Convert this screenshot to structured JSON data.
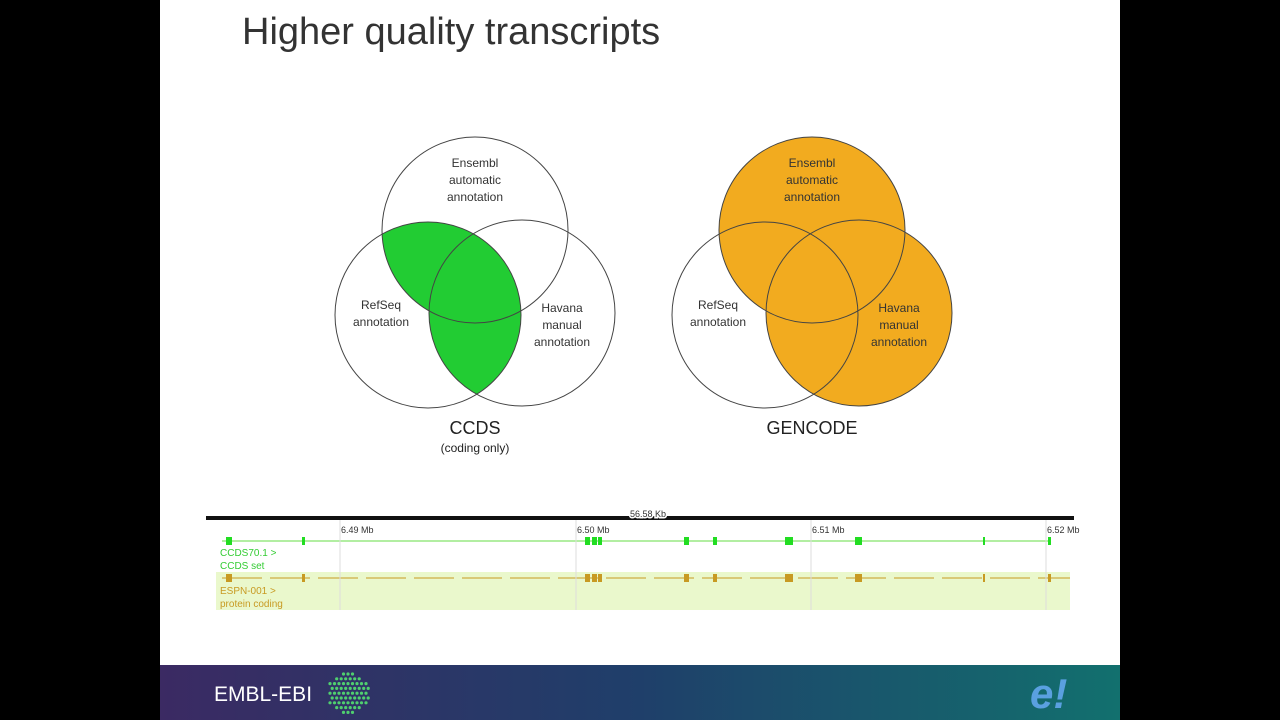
{
  "header": {
    "title": "Higher quality transcripts"
  },
  "venns": [
    {
      "top": "Ensembl automatic annotation",
      "left": "RefSeq annotation",
      "right": "Havana manual annotation",
      "name": "CCDS",
      "note": "(coding only)"
    },
    {
      "top": "Ensembl automatic annotation",
      "left": "RefSeq annotation",
      "right": "Havana manual annotation",
      "name": "GENCODE"
    }
  ],
  "browser": {
    "span": "56.58 Kb",
    "positions": [
      "6.49 Mb",
      "6.50 Mb",
      "6.51 Mb",
      "6.52 Mb"
    ],
    "tracks": [
      {
        "label": "CCDS70.1 >",
        "sub": "CCDS set"
      },
      {
        "label": "ESPN-001 >",
        "sub": "protein coding"
      }
    ]
  },
  "footer": {
    "org": "EMBL-EBI",
    "logo": "e!"
  }
}
